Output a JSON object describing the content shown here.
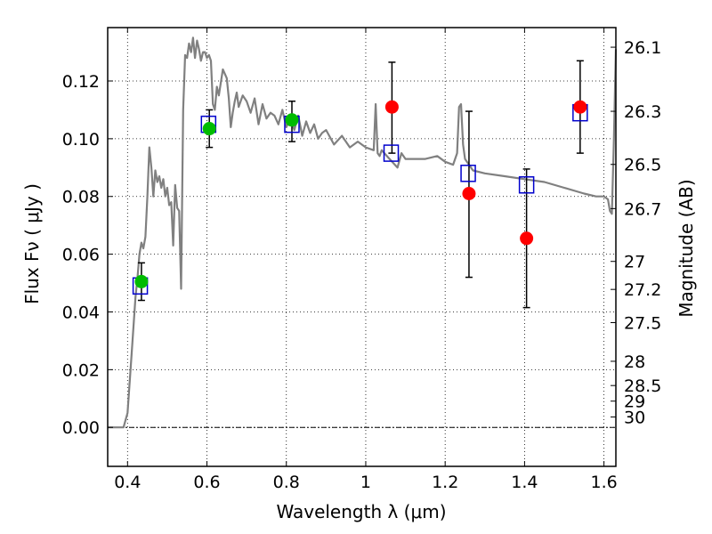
{
  "chart_data": {
    "type": "scatter",
    "title": "",
    "xlabel": "Wavelength  λ (μm)",
    "ylabel": "Flux  Fν  ( μJy )",
    "y2label": "Magnitude (AB)",
    "xlim": [
      0.35,
      1.63
    ],
    "ylim": [
      -0.0135,
      0.1385
    ],
    "grid": true,
    "x_ticks": [
      0.4,
      0.6,
      0.8,
      1.0,
      1.2,
      1.4,
      1.6
    ],
    "x_tick_labels": [
      "0.4",
      "0.6",
      "0.8",
      "1",
      "1.2",
      "1.4",
      "1.6"
    ],
    "y_ticks": [
      0.0,
      0.02,
      0.04,
      0.06,
      0.08,
      0.1,
      0.12
    ],
    "y_tick_labels": [
      "0.00",
      "0.02",
      "0.04",
      "0.06",
      "0.08",
      "0.10",
      "0.12"
    ],
    "y2_ticks": [
      {
        "label": "26.1",
        "flux": 0.1317
      },
      {
        "label": "26.3",
        "flux": 0.1095
      },
      {
        "label": "26.5",
        "flux": 0.0911
      },
      {
        "label": "26.7",
        "flux": 0.0758
      },
      {
        "label": "27",
        "flux": 0.0575
      },
      {
        "label": "27.2",
        "flux": 0.0478
      },
      {
        "label": "27.5",
        "flux": 0.0363
      },
      {
        "label": "28",
        "flux": 0.0229
      },
      {
        "label": "28.5",
        "flux": 0.0145
      },
      {
        "label": "29",
        "flux": 0.0091
      },
      {
        "label": "30",
        "flux": 0.0036
      }
    ],
    "colors": {
      "model": "#808080",
      "observed_blue": "#00bb00",
      "observed_red": "#ff0000",
      "synthetic": "#0000cc",
      "errorbar": "#000000"
    },
    "series": [
      {
        "kind": "line",
        "x": [
          0.35,
          0.39,
          0.4,
          0.41,
          0.42,
          0.425,
          0.43,
          0.435,
          0.44,
          0.445,
          0.45,
          0.455,
          0.46,
          0.465,
          0.47,
          0.475,
          0.48,
          0.485,
          0.49,
          0.495,
          0.5,
          0.505,
          0.51,
          0.515,
          0.52,
          0.525,
          0.53,
          0.535,
          0.54,
          0.545,
          0.55,
          0.555,
          0.56,
          0.565,
          0.57,
          0.575,
          0.58,
          0.585,
          0.59,
          0.595,
          0.6,
          0.605,
          0.61,
          0.615,
          0.62,
          0.625,
          0.63,
          0.64,
          0.65,
          0.655,
          0.66,
          0.665,
          0.67,
          0.675,
          0.68,
          0.69,
          0.7,
          0.71,
          0.72,
          0.73,
          0.74,
          0.75,
          0.76,
          0.77,
          0.78,
          0.79,
          0.8,
          0.81,
          0.82,
          0.83,
          0.84,
          0.85,
          0.86,
          0.87,
          0.88,
          0.89,
          0.9,
          0.92,
          0.94,
          0.96,
          0.98,
          1.0,
          1.02,
          1.025,
          1.03,
          1.035,
          1.04,
          1.06,
          1.08,
          1.09,
          1.1,
          1.12,
          1.15,
          1.18,
          1.2,
          1.22,
          1.23,
          1.235,
          1.24,
          1.245,
          1.25,
          1.27,
          1.3,
          1.35,
          1.4,
          1.45,
          1.5,
          1.55,
          1.58,
          1.6,
          1.61,
          1.615,
          1.62,
          1.625,
          1.63
        ],
        "y": [
          0.0,
          0.0,
          0.005,
          0.025,
          0.045,
          0.052,
          0.06,
          0.064,
          0.062,
          0.066,
          0.08,
          0.097,
          0.09,
          0.08,
          0.089,
          0.085,
          0.087,
          0.083,
          0.086,
          0.08,
          0.083,
          0.077,
          0.078,
          0.063,
          0.084,
          0.076,
          0.075,
          0.048,
          0.11,
          0.129,
          0.128,
          0.133,
          0.13,
          0.135,
          0.128,
          0.134,
          0.131,
          0.127,
          0.13,
          0.13,
          0.128,
          0.129,
          0.127,
          0.112,
          0.11,
          0.118,
          0.115,
          0.124,
          0.121,
          0.114,
          0.104,
          0.109,
          0.113,
          0.116,
          0.111,
          0.115,
          0.113,
          0.109,
          0.114,
          0.105,
          0.112,
          0.107,
          0.109,
          0.108,
          0.105,
          0.11,
          0.104,
          0.107,
          0.103,
          0.108,
          0.101,
          0.106,
          0.102,
          0.105,
          0.1,
          0.102,
          0.103,
          0.098,
          0.101,
          0.097,
          0.099,
          0.097,
          0.096,
          0.112,
          0.095,
          0.094,
          0.096,
          0.093,
          0.09,
          0.095,
          0.093,
          0.093,
          0.093,
          0.094,
          0.092,
          0.091,
          0.095,
          0.111,
          0.112,
          0.098,
          0.093,
          0.089,
          0.088,
          0.087,
          0.086,
          0.085,
          0.083,
          0.081,
          0.08,
          0.08,
          0.079,
          0.075,
          0.074,
          0.1,
          0.131
        ]
      },
      {
        "kind": "markers",
        "marker": "open-square",
        "x": [
          0.432,
          0.604,
          0.814,
          1.064,
          1.258,
          1.405,
          1.54
        ],
        "y": [
          0.049,
          0.105,
          0.105,
          0.095,
          0.088,
          0.084,
          0.109
        ]
      },
      {
        "kind": "markers",
        "marker": "circle",
        "color": "green",
        "x": [
          0.435,
          0.606,
          0.814
        ],
        "y": [
          0.0505,
          0.1035,
          0.1065
        ]
      },
      {
        "kind": "markers",
        "marker": "circle",
        "color": "red",
        "x": [
          1.066,
          1.26,
          1.405,
          1.54
        ],
        "y": [
          0.111,
          0.081,
          0.0655,
          0.111
        ]
      },
      {
        "kind": "errorbars",
        "x": [
          0.435,
          0.606,
          0.814,
          1.066,
          1.26,
          1.405,
          1.54
        ],
        "y": [
          0.0505,
          0.1035,
          0.1065,
          0.111,
          0.081,
          0.0655,
          0.111
        ],
        "ylo": [
          0.044,
          0.097,
          0.099,
          0.095,
          0.052,
          0.0415,
          0.095
        ],
        "yhi": [
          0.057,
          0.11,
          0.113,
          0.1265,
          0.1095,
          0.0895,
          0.127
        ]
      }
    ]
  }
}
